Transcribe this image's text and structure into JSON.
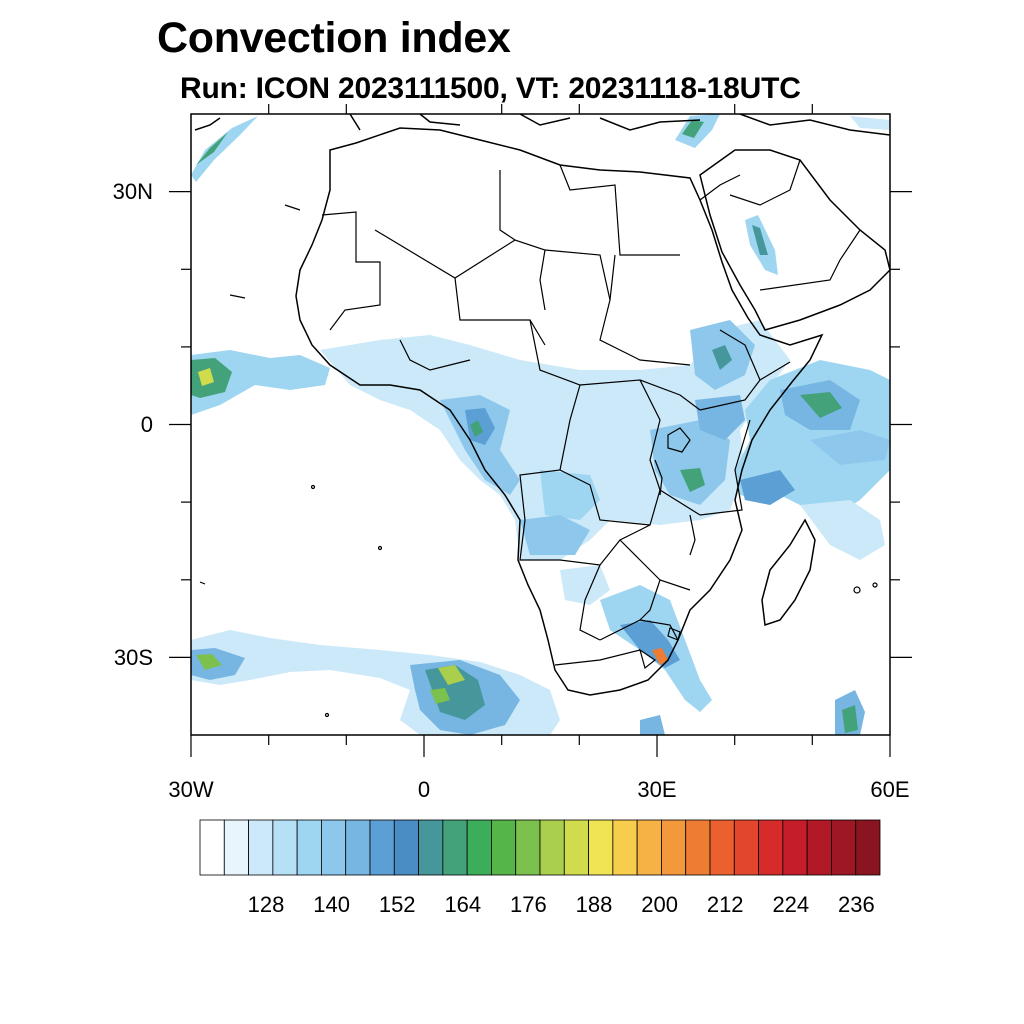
{
  "title": "Convection index",
  "subtitle": "Run: ICON 2023111500,  VT: 20231118-18UTC",
  "map": {
    "lon_range": [
      -30,
      60
    ],
    "lat_range": [
      -40,
      40
    ],
    "x_tick_labels": [
      "30W",
      "0",
      "30E",
      "60E"
    ],
    "y_tick_labels": [
      "30N",
      "0",
      "30S"
    ]
  },
  "colorbar": {
    "labels": [
      "128",
      "140",
      "152",
      "164",
      "176",
      "188",
      "200",
      "212",
      "224",
      "236"
    ],
    "colors": [
      "#ffffff",
      "#e8f5fc",
      "#cbe9f8",
      "#b6e0f5",
      "#9ed6f2",
      "#8dc8ec",
      "#77b6e2",
      "#5c9fd4",
      "#4a8cc4",
      "#45979c",
      "#44a27a",
      "#3cae5a",
      "#55b548",
      "#7cc04e",
      "#a9cf4c",
      "#d0dc4c",
      "#f0e455",
      "#f8cc4c",
      "#f7b245",
      "#f4983c",
      "#ef7c33",
      "#ea602e",
      "#e2462d",
      "#d62b2b",
      "#c61d2a",
      "#b11927",
      "#9e1724",
      "#8a1520"
    ]
  }
}
